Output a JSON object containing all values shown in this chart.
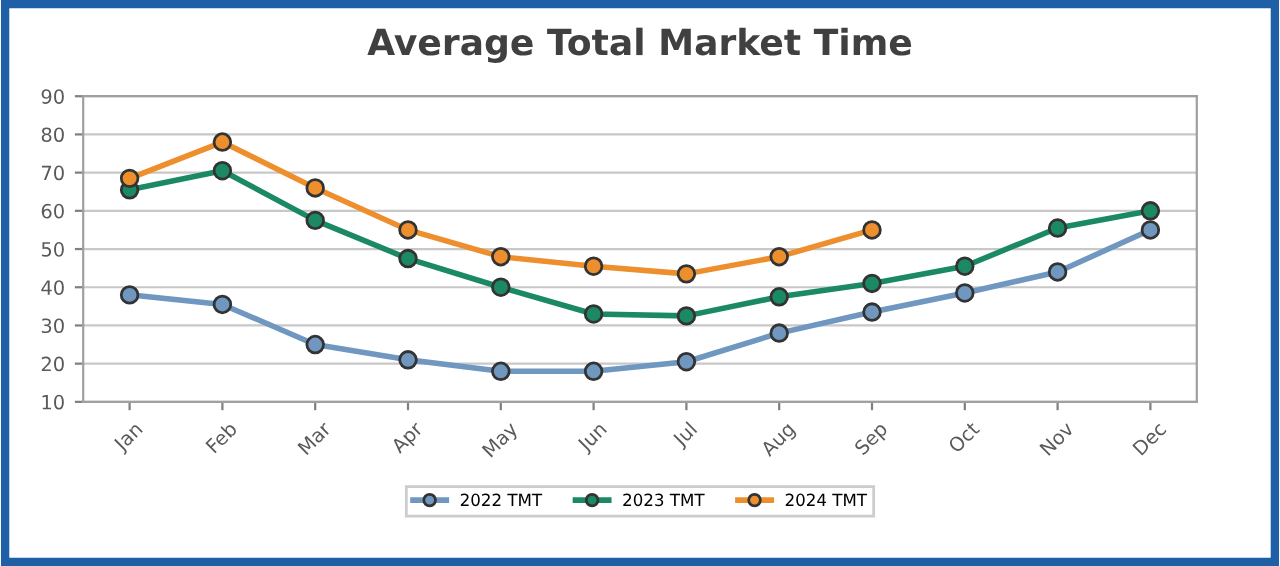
{
  "chart_data": {
    "type": "line",
    "title": "Average Total Market Time",
    "categories": [
      "Jan",
      "Feb",
      "Mar",
      "Apr",
      "May",
      "Jun",
      "Jul",
      "Aug",
      "Sep",
      "Oct",
      "Nov",
      "Dec"
    ],
    "series": [
      {
        "name": "2022 TMT",
        "color": "#6f97c0",
        "values": [
          38,
          35.5,
          25,
          21,
          18,
          18,
          20.5,
          28,
          33.5,
          38.5,
          44,
          55
        ]
      },
      {
        "name": "2023 TMT",
        "color": "#1b8a64",
        "values": [
          65.5,
          70.5,
          57.5,
          47.5,
          40,
          33,
          32.5,
          37.5,
          41,
          45.5,
          55.5,
          60
        ]
      },
      {
        "name": "2024 TMT",
        "color": "#ee8f2e",
        "values": [
          68.5,
          78,
          66,
          55,
          48,
          45.5,
          43.5,
          48,
          55,
          null,
          null,
          null
        ]
      }
    ],
    "ylim": [
      10,
      90
    ],
    "yticks": [
      10,
      20,
      30,
      40,
      50,
      60,
      70,
      80,
      90
    ],
    "grid": "y",
    "legend": "bottom",
    "marker": "circle",
    "line_style": "solid"
  }
}
